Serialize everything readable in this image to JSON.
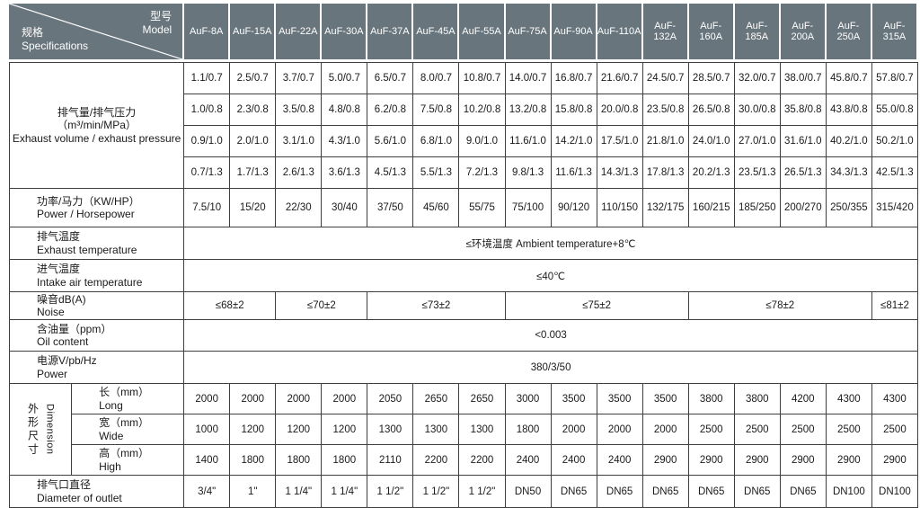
{
  "header": {
    "corner": {
      "model_cn": "型号",
      "model_en": "Model",
      "spec_cn": "规格",
      "spec_en": "Specifications"
    },
    "models": [
      "AuF-8A",
      "AuF-15A",
      "AuF-22A",
      "AuF-30A",
      "AuF-37A",
      "AuF-45A",
      "AuF-55A",
      "AuF-75A",
      "AuF-90A",
      "AuF-110A",
      "AuF-132A",
      "AuF-160A",
      "AuF-185A",
      "AuF-200A",
      "AuF-250A",
      "AuF-315A"
    ]
  },
  "colors": {
    "header_bg": "#68757C",
    "header_text": "#FFFFFF",
    "body_border": "#3F3F3F",
    "body_text": "#1A1A1A"
  },
  "sections": {
    "exhaust_volume": {
      "label_cn": "排气量/排气压力",
      "label_unit": "（m³/min/MPa）",
      "label_en": "Exhaust volume / exhaust pressure",
      "rows": [
        [
          "1.1/0.7",
          "2.5/0.7",
          "3.7/0.7",
          "5.0/0.7",
          "6.5/0.7",
          "8.0/0.7",
          "10.8/0.7",
          "14.0/0.7",
          "16.8/0.7",
          "21.6/0.7",
          "24.5/0.7",
          "28.5/0.7",
          "32.0/0.7",
          "38.0/0.7",
          "45.8/0.7",
          "57.8/0.7"
        ],
        [
          "1.0/0.8",
          "2.3/0.8",
          "3.5/0.8",
          "4.8/0.8",
          "6.2/0.8",
          "7.5/0.8",
          "10.2/0.8",
          "13.2/0.8",
          "15.8/0.8",
          "20.0/0.8",
          "23.5/0.8",
          "26.5/0.8",
          "30.0/0.8",
          "35.8/0.8",
          "43.8/0.8",
          "55.0/0.8"
        ],
        [
          "0.9/1.0",
          "2.0/1.0",
          "3.1/1.0",
          "4.3/1.0",
          "5.6/1.0",
          "6.8/1.0",
          "9.0/1.0",
          "11.6/1.0",
          "14.2/1.0",
          "17.5/1.0",
          "21.8/1.0",
          "24.0/1.0",
          "27.0/1.0",
          "31.6/1.0",
          "40.2/1.0",
          "50.2/1.0"
        ],
        [
          "0.7/1.3",
          "1.7/1.3",
          "2.6/1.3",
          "3.6/1.3",
          "4.5/1.3",
          "5.5/1.3",
          "7.2/1.3",
          "9.8/1.3",
          "11.6/1.3",
          "14.3/1.3",
          "17.8/1.3",
          "20.2/1.3",
          "23.5/1.3",
          "26.5/1.3",
          "34.3/1.3",
          "42.5/1.3"
        ]
      ]
    },
    "power": {
      "label_cn": "功率/马力（KW/HP）",
      "label_en": "Power / Horsepower",
      "values": [
        "7.5/10",
        "15/20",
        "22/30",
        "30/40",
        "37/50",
        "45/60",
        "55/75",
        "75/100",
        "90/120",
        "110/150",
        "132/175",
        "160/215",
        "185/250",
        "200/270",
        "250/355",
        "315/420"
      ]
    },
    "exhaust_temp": {
      "label_cn": "排气温度",
      "label_en": "Exhaust temperature",
      "value": "≤环境温度 Ambient temperature+8℃"
    },
    "intake_temp": {
      "label_cn": "进气温度",
      "label_en": "Intake air temperature",
      "value": "≤40℃"
    },
    "noise": {
      "label_cn": "噪音dB(A)",
      "label_en": "Noise",
      "cells": [
        {
          "value": "≤68±2",
          "span": 2
        },
        {
          "value": "≤70±2",
          "span": 2
        },
        {
          "value": "≤73±2",
          "span": 3
        },
        {
          "value": "≤75±2",
          "span": 4
        },
        {
          "value": "≤78±2",
          "span": 4
        },
        {
          "value": "≤81±2",
          "span": 1
        }
      ]
    },
    "oil_content": {
      "label_cn": "含油量（ppm）",
      "label_en": "Oil content",
      "value": "<0.003"
    },
    "power_supply": {
      "label_cn": "电源V/pb/Hz",
      "label_en": "Power",
      "value": "380/3/50"
    },
    "dimensions": {
      "group_cn": "外形尺寸",
      "group_en": "Dimension",
      "rows": [
        {
          "label_cn": "长（mm）",
          "label_en": "Long",
          "values": [
            "2000",
            "2000",
            "2000",
            "2000",
            "2050",
            "2650",
            "2650",
            "3000",
            "3500",
            "3500",
            "3500",
            "3800",
            "3800",
            "4200",
            "4300",
            "4300"
          ]
        },
        {
          "label_cn": "宽（mm）",
          "label_en": "Wide",
          "values": [
            "1000",
            "1200",
            "1200",
            "1200",
            "1300",
            "1300",
            "1300",
            "1800",
            "2000",
            "2000",
            "2000",
            "2500",
            "2500",
            "2500",
            "2500",
            "2500"
          ]
        },
        {
          "label_cn": "高（mm）",
          "label_en": "High",
          "values": [
            "1400",
            "1800",
            "1800",
            "1800",
            "2110",
            "2200",
            "2200",
            "2400",
            "2400",
            "2400",
            "2900",
            "2900",
            "2900",
            "2900",
            "2900",
            "2900"
          ]
        }
      ]
    },
    "outlet": {
      "label_cn": "排气口直径",
      "label_en": "Diameter of outlet",
      "values": [
        "3/4\"",
        "1\"",
        "1 1/4\"",
        "1 1/4\"",
        "1 1/2\"",
        "1 1/2\"",
        "1 1/2\"",
        "DN50",
        "DN65",
        "DN65",
        "DN65",
        "DN65",
        "DN65",
        "DN65",
        "DN100",
        "DN100"
      ]
    }
  }
}
